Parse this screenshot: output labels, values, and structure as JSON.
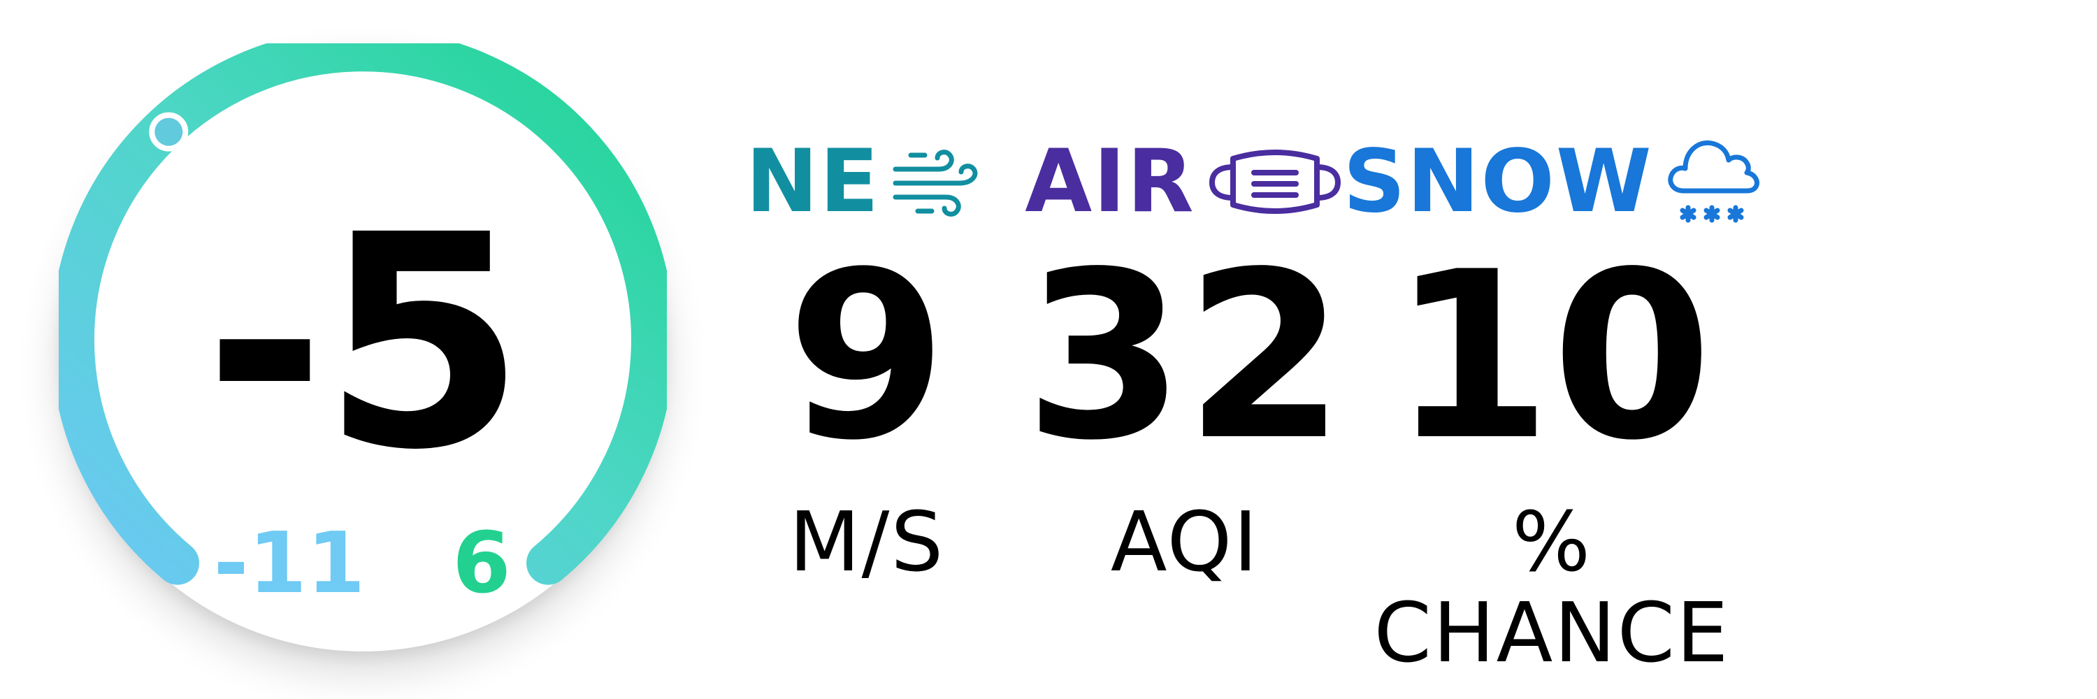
{
  "temperature": {
    "current": "-5",
    "low": "-11",
    "high": "6",
    "level": 0.35,
    "colors": {
      "start": "#6cc8f5",
      "end": "#1dd591",
      "mid": "#4fd6c8",
      "low_text": "#6fcaf4",
      "high_text": "#22d190"
    }
  },
  "wind": {
    "label": "NE",
    "value": "9",
    "unit": "M/S",
    "icon": "wind-icon",
    "color": "#118fa0"
  },
  "air": {
    "label": "AIR",
    "value": "32",
    "unit": "AQI",
    "icon": "face-mask-icon",
    "color": "#4a2d9f"
  },
  "snow": {
    "label": "SNOW",
    "value": "10",
    "unit": "% CHANCE",
    "icon": "snow-cloud-icon",
    "color": "#1877d8"
  }
}
